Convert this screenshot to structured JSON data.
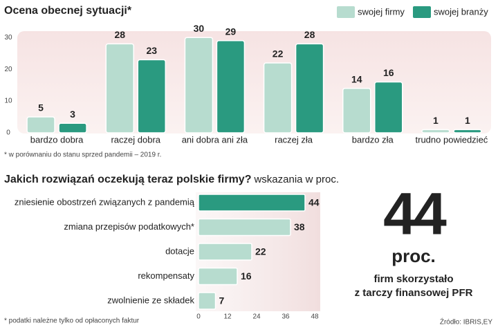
{
  "chart_data": [
    {
      "type": "grouped-bar",
      "title": "Ocena obecnej sytuacji*",
      "footnote": "* w porównaniu do stanu sprzed pandemii – 2019 r.",
      "categories": [
        "bardzo dobra",
        "raczej dobra",
        "ani dobra ani zła",
        "raczej zła",
        "bardzo zła",
        "trudno powiedzieć"
      ],
      "series": [
        {
          "name": "swojej firmy",
          "color": "#b7dccf",
          "values": [
            5,
            28,
            30,
            22,
            14,
            1
          ]
        },
        {
          "name": "swojej branży",
          "color": "#2a9a80",
          "values": [
            3,
            23,
            29,
            28,
            16,
            1
          ]
        }
      ],
      "ylim": [
        0,
        32
      ],
      "yticks": [
        0,
        10,
        20,
        30
      ],
      "legend": "top-right"
    },
    {
      "type": "hbar",
      "title": "Jakich rozwiązań oczekują teraz polskie firmy?",
      "subtitle": "wskazania w proc.",
      "footnote": "* podatki należne tylko od opłaconych faktur",
      "categories": [
        "zniesienie obostrzeń związanych z pandemią",
        "zmiana przepisów podatkowych*",
        "dotacje",
        "rekompensaty",
        "zwolnienie ze składek"
      ],
      "values": [
        44,
        38,
        22,
        16,
        7
      ],
      "colors": [
        "#2a9a80",
        "#b7dccf",
        "#b7dccf",
        "#b7dccf",
        "#b7dccf"
      ],
      "xlim": [
        0,
        48
      ],
      "xticks": [
        0,
        12,
        24,
        36,
        48
      ]
    }
  ],
  "callout": {
    "number": 44,
    "unit": "proc.",
    "lines": [
      "firm skorzystało",
      "z tarczy finansowej PFR"
    ],
    "color": "#d8322a"
  },
  "source": "Źródło: IBRIS,EY"
}
